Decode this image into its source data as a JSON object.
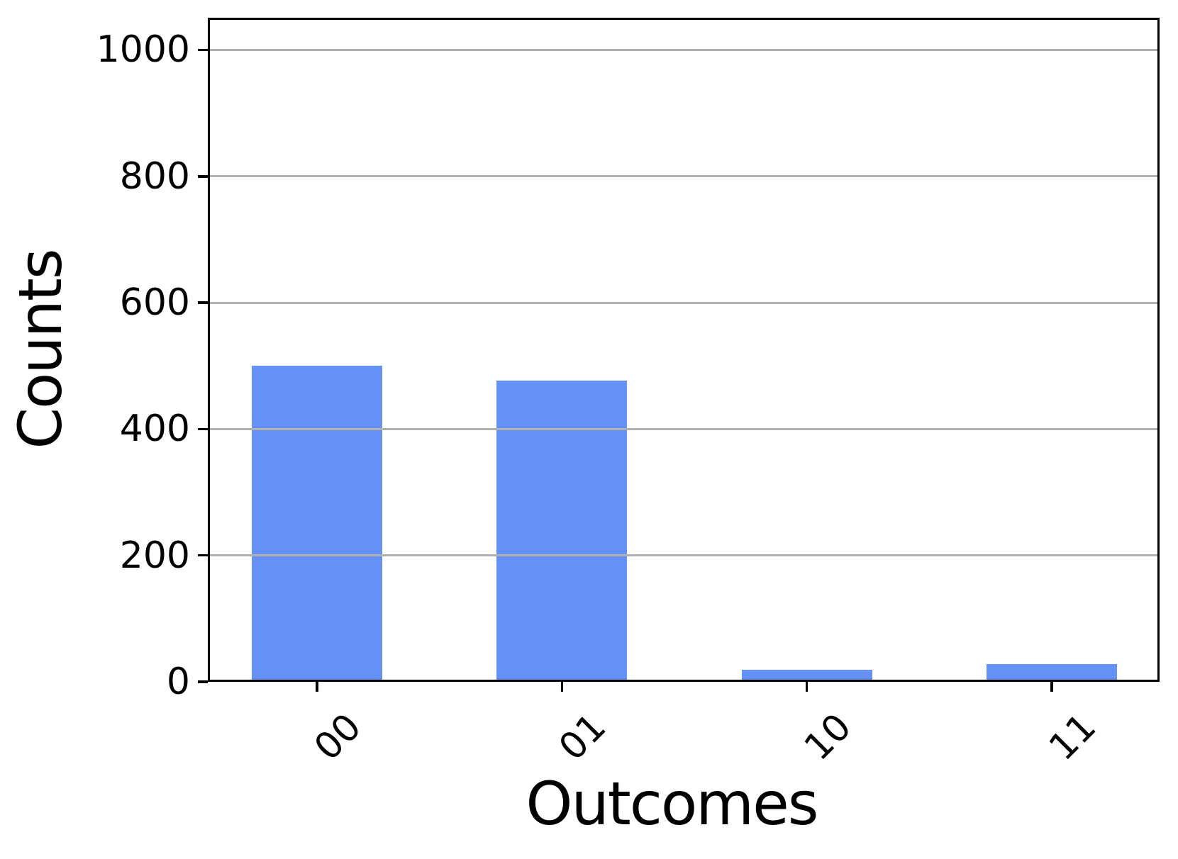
{
  "chart_data": {
    "type": "bar",
    "title": "",
    "xlabel": "Outcomes",
    "ylabel": "Counts",
    "categories": [
      "00",
      "01",
      "10",
      "11"
    ],
    "values": [
      500,
      477,
      19,
      28
    ],
    "yticks": [
      0,
      200,
      400,
      600,
      800,
      1000
    ],
    "ytick_labels": [
      "0",
      "200",
      "400",
      "600",
      "800",
      "1000"
    ],
    "ylim": [
      0,
      1051
    ],
    "grid": "horizontal-solid, drawn above bars",
    "legend": "none",
    "bar_color": "#6590F6",
    "grid_color": "#b0b0b0",
    "spine_color": "#000000",
    "tick_label_rotation_deg": 45
  }
}
